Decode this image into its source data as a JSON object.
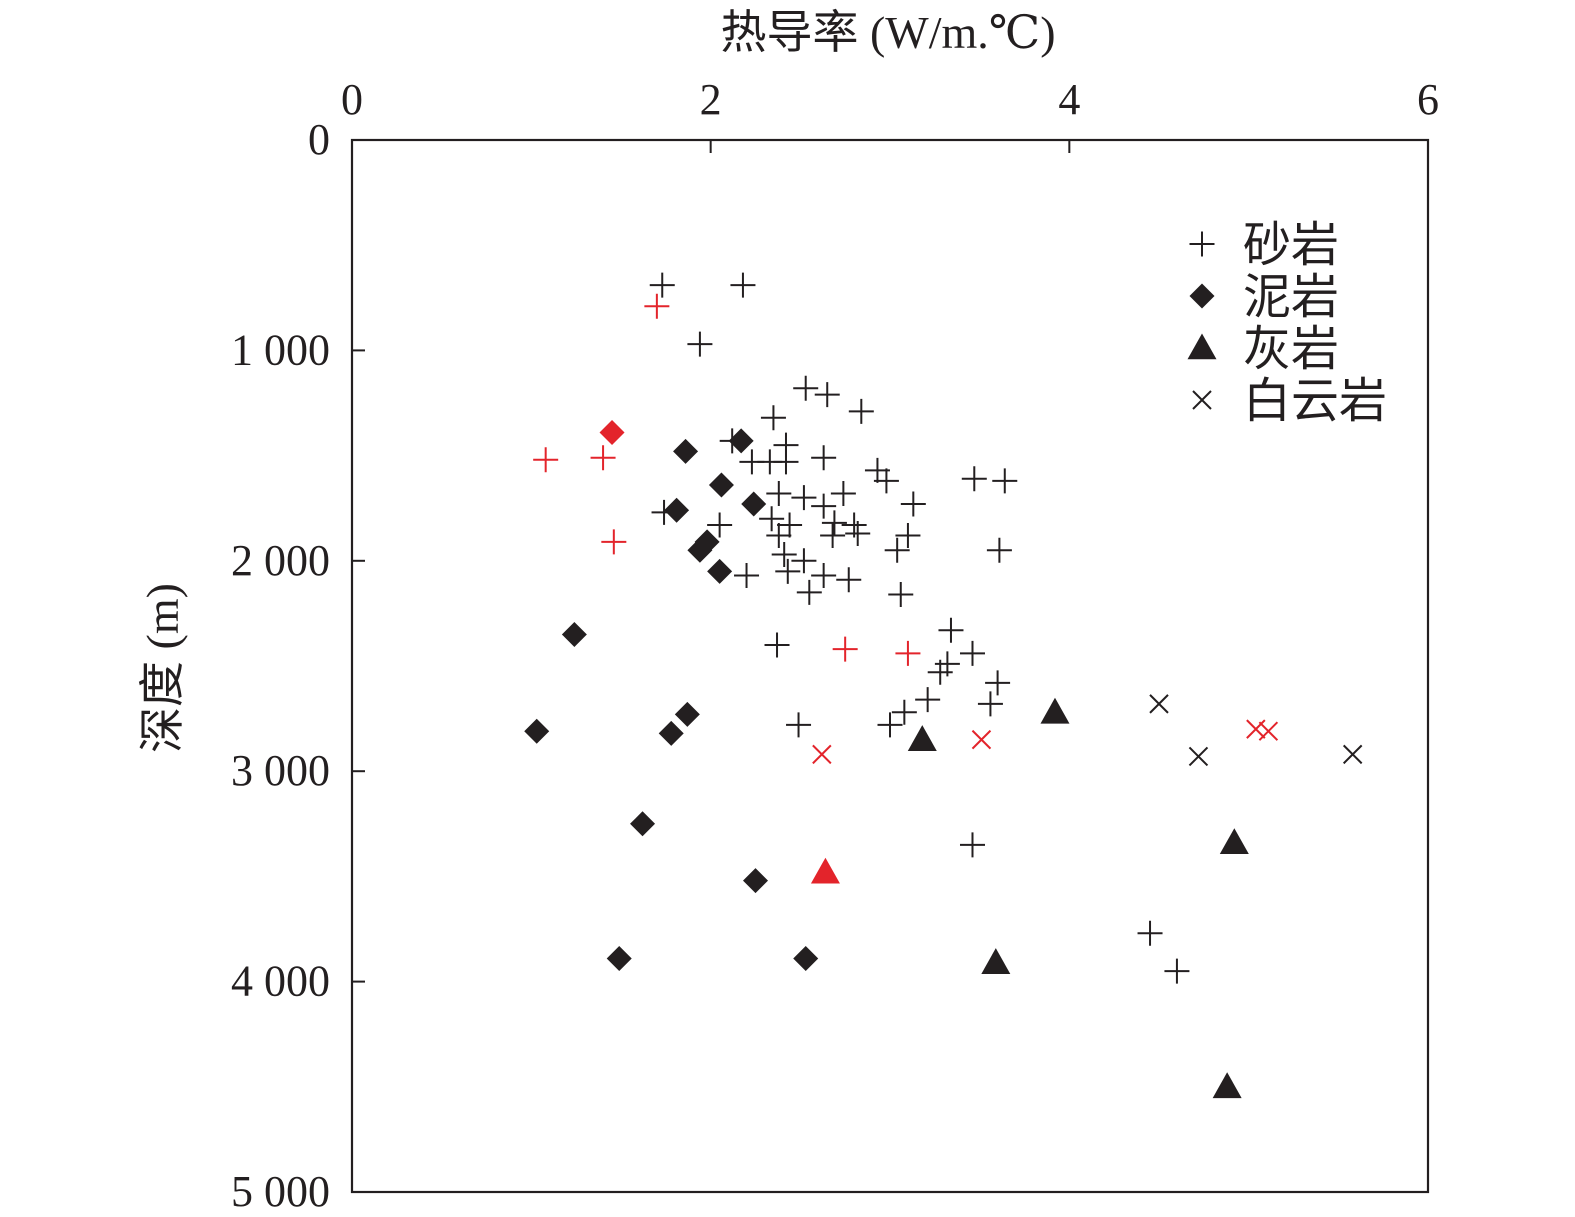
{
  "chart_data": {
    "type": "scatter",
    "xlabel": "热导率 (W/m.℃)",
    "ylabel": "深度 (m)",
    "xlim": [
      0,
      6
    ],
    "ylim": [
      0,
      5000
    ],
    "x_axis_position": "top",
    "y_axis_inverted": true,
    "grid": false,
    "legend_position": "top-right",
    "x_ticks": [
      0,
      2,
      4,
      6
    ],
    "x_tick_labels": [
      "0",
      "2",
      "4",
      "6"
    ],
    "y_ticks": [
      0,
      1000,
      2000,
      3000,
      4000,
      5000
    ],
    "y_tick_labels": [
      "0",
      "1 000",
      "2 000",
      "3 000",
      "4 000",
      "5 000"
    ],
    "colors": {
      "default": "#231f20",
      "highlight": "#e3242b"
    },
    "series": [
      {
        "name": "砂岩",
        "marker": "plus",
        "points": [
          {
            "x": 1.73,
            "y": 690
          },
          {
            "x": 2.18,
            "y": 690
          },
          {
            "x": 1.7,
            "y": 790,
            "highlight": true
          },
          {
            "x": 1.94,
            "y": 970
          },
          {
            "x": 2.53,
            "y": 1180
          },
          {
            "x": 2.65,
            "y": 1210
          },
          {
            "x": 2.84,
            "y": 1290
          },
          {
            "x": 2.35,
            "y": 1320
          },
          {
            "x": 2.12,
            "y": 1430
          },
          {
            "x": 2.42,
            "y": 1450
          },
          {
            "x": 1.08,
            "y": 1520,
            "highlight": true
          },
          {
            "x": 1.4,
            "y": 1510,
            "highlight": true
          },
          {
            "x": 2.23,
            "y": 1530
          },
          {
            "x": 2.33,
            "y": 1530
          },
          {
            "x": 2.42,
            "y": 1530
          },
          {
            "x": 2.63,
            "y": 1510
          },
          {
            "x": 2.93,
            "y": 1570
          },
          {
            "x": 2.98,
            "y": 1620
          },
          {
            "x": 3.47,
            "y": 1610
          },
          {
            "x": 3.64,
            "y": 1620
          },
          {
            "x": 2.38,
            "y": 1680
          },
          {
            "x": 2.52,
            "y": 1700
          },
          {
            "x": 2.74,
            "y": 1680
          },
          {
            "x": 2.63,
            "y": 1740
          },
          {
            "x": 3.13,
            "y": 1730
          },
          {
            "x": 1.74,
            "y": 1770
          },
          {
            "x": 2.05,
            "y": 1830
          },
          {
            "x": 2.34,
            "y": 1800
          },
          {
            "x": 2.44,
            "y": 1830
          },
          {
            "x": 2.69,
            "y": 1820
          },
          {
            "x": 2.8,
            "y": 1830
          },
          {
            "x": 2.38,
            "y": 1880
          },
          {
            "x": 2.68,
            "y": 1880
          },
          {
            "x": 2.82,
            "y": 1870
          },
          {
            "x": 3.1,
            "y": 1880
          },
          {
            "x": 1.46,
            "y": 1910,
            "highlight": true
          },
          {
            "x": 3.04,
            "y": 1950
          },
          {
            "x": 3.61,
            "y": 1950
          },
          {
            "x": 2.41,
            "y": 1970
          },
          {
            "x": 2.52,
            "y": 2000
          },
          {
            "x": 2.43,
            "y": 2050
          },
          {
            "x": 2.2,
            "y": 2070
          },
          {
            "x": 2.63,
            "y": 2070
          },
          {
            "x": 2.77,
            "y": 2090
          },
          {
            "x": 2.55,
            "y": 2150
          },
          {
            "x": 3.06,
            "y": 2160
          },
          {
            "x": 3.34,
            "y": 2330
          },
          {
            "x": 2.37,
            "y": 2400
          },
          {
            "x": 2.75,
            "y": 2420,
            "highlight": true
          },
          {
            "x": 3.1,
            "y": 2440,
            "highlight": true
          },
          {
            "x": 3.46,
            "y": 2440
          },
          {
            "x": 3.32,
            "y": 2490
          },
          {
            "x": 3.28,
            "y": 2530
          },
          {
            "x": 3.6,
            "y": 2580
          },
          {
            "x": 3.21,
            "y": 2660
          },
          {
            "x": 3.56,
            "y": 2680
          },
          {
            "x": 3.08,
            "y": 2720
          },
          {
            "x": 3.0,
            "y": 2780
          },
          {
            "x": 2.49,
            "y": 2780
          },
          {
            "x": 3.46,
            "y": 3350
          },
          {
            "x": 4.45,
            "y": 3770
          },
          {
            "x": 4.6,
            "y": 3950
          }
        ]
      },
      {
        "name": "泥岩",
        "marker": "diamond",
        "points": [
          {
            "x": 1.45,
            "y": 1390,
            "highlight": true
          },
          {
            "x": 2.17,
            "y": 1430
          },
          {
            "x": 1.86,
            "y": 1480
          },
          {
            "x": 2.06,
            "y": 1640
          },
          {
            "x": 2.24,
            "y": 1730
          },
          {
            "x": 1.81,
            "y": 1760
          },
          {
            "x": 1.98,
            "y": 1910
          },
          {
            "x": 1.94,
            "y": 1950
          },
          {
            "x": 2.05,
            "y": 2050
          },
          {
            "x": 1.24,
            "y": 2350
          },
          {
            "x": 1.87,
            "y": 2730
          },
          {
            "x": 1.78,
            "y": 2820
          },
          {
            "x": 1.03,
            "y": 2810
          },
          {
            "x": 1.62,
            "y": 3250
          },
          {
            "x": 2.25,
            "y": 3520
          },
          {
            "x": 1.49,
            "y": 3890
          },
          {
            "x": 2.53,
            "y": 3890
          }
        ]
      },
      {
        "name": "灰岩",
        "marker": "triangle",
        "points": [
          {
            "x": 3.92,
            "y": 2720
          },
          {
            "x": 3.18,
            "y": 2850
          },
          {
            "x": 4.92,
            "y": 3340
          },
          {
            "x": 2.64,
            "y": 3480,
            "highlight": true
          },
          {
            "x": 3.59,
            "y": 3910
          },
          {
            "x": 4.88,
            "y": 4500
          }
        ]
      },
      {
        "name": "白云岩",
        "marker": "cross",
        "points": [
          {
            "x": 4.5,
            "y": 2680
          },
          {
            "x": 3.51,
            "y": 2850,
            "highlight": true
          },
          {
            "x": 2.62,
            "y": 2920,
            "highlight": true
          },
          {
            "x": 4.72,
            "y": 2930
          },
          {
            "x": 5.04,
            "y": 2800,
            "highlight": true
          },
          {
            "x": 5.11,
            "y": 2810,
            "highlight": true
          },
          {
            "x": 5.58,
            "y": 2920
          }
        ]
      }
    ]
  }
}
